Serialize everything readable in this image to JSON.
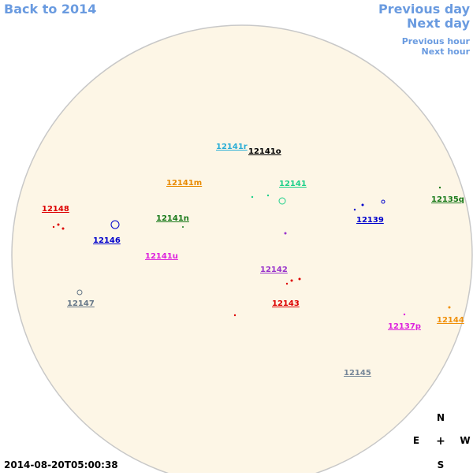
{
  "header": {
    "back_link": "Back to 2014",
    "previous_day": "Previous day",
    "next_day": "Next day",
    "previous_hour": "Previous hour",
    "next_hour": "Next hour"
  },
  "timestamp": "2014-08-20T05:00:38",
  "compass": {
    "north": "N",
    "east": "E",
    "center": "+",
    "west": "W",
    "south": "S"
  },
  "regions": [
    {
      "label": "12141r",
      "color": "#2aaed6"
    },
    {
      "label": "12141o",
      "color": "#000000"
    },
    {
      "label": "12141m",
      "color": "#e88a00"
    },
    {
      "label": "12141",
      "color": "#1ed08a"
    },
    {
      "label": "12148",
      "color": "#dd0000"
    },
    {
      "label": "12135q",
      "color": "#1a7a1a"
    },
    {
      "label": "12141n",
      "color": "#1a7a1a"
    },
    {
      "label": "12139",
      "color": "#0000cc"
    },
    {
      "label": "12146",
      "color": "#0000cc"
    },
    {
      "label": "12141u",
      "color": "#dd22dd"
    },
    {
      "label": "12142",
      "color": "#9933cc"
    },
    {
      "label": "12143",
      "color": "#dd0000"
    },
    {
      "label": "12147",
      "color": "#667788"
    },
    {
      "label": "12137p",
      "color": "#dd22dd"
    },
    {
      "label": "12144",
      "color": "#f0900a"
    },
    {
      "label": "12145",
      "color": "#778899"
    }
  ]
}
